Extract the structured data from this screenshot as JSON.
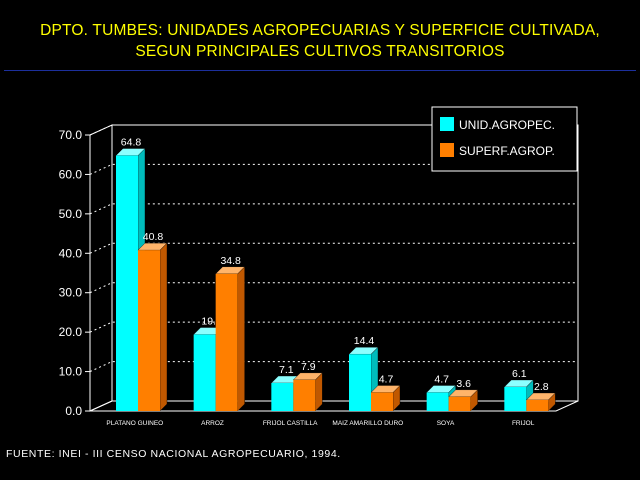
{
  "title_line1": "DPTO. TUMBES: UNIDADES AGROPECUARIAS Y SUPERFICIE CULTIVADA,",
  "title_line2": "SEGUN PRINCIPALES CULTIVOS TRANSITORIOS",
  "source": "FUENTE: INEI - III CENSO NACIONAL AGROPECUARIO, 1994.",
  "chart_data": {
    "type": "bar",
    "style": "3d-clustered",
    "categories": [
      "PLATANO GUINEO",
      "ARROZ",
      "FRIJOL CASTILLA",
      "MAIZ AMARILLO DURO",
      "SOYA",
      "FRIJOL"
    ],
    "series": [
      {
        "name": "UNID.AGROPEC.",
        "color": "#00ffff",
        "values": [
          64.8,
          19.4,
          7.1,
          14.4,
          4.7,
          6.1
        ],
        "labels": [
          "64.8",
          "19.",
          "7.1",
          "14.4",
          "4.7",
          "6.1"
        ]
      },
      {
        "name": "SUPERF.AGROP.",
        "color": "#ff7f00",
        "values": [
          40.8,
          34.8,
          7.9,
          4.7,
          3.6,
          2.8
        ],
        "labels": [
          "40.8",
          "34.8",
          "7.9",
          "4.7",
          "3.6",
          "2.8"
        ]
      }
    ],
    "yticks": [
      "0.0",
      "10.0",
      "20.0",
      "30.0",
      "40.0",
      "50.0",
      "60.0",
      "70.0"
    ],
    "ylim": [
      0,
      70
    ],
    "grid": true,
    "legend": "top-right"
  }
}
